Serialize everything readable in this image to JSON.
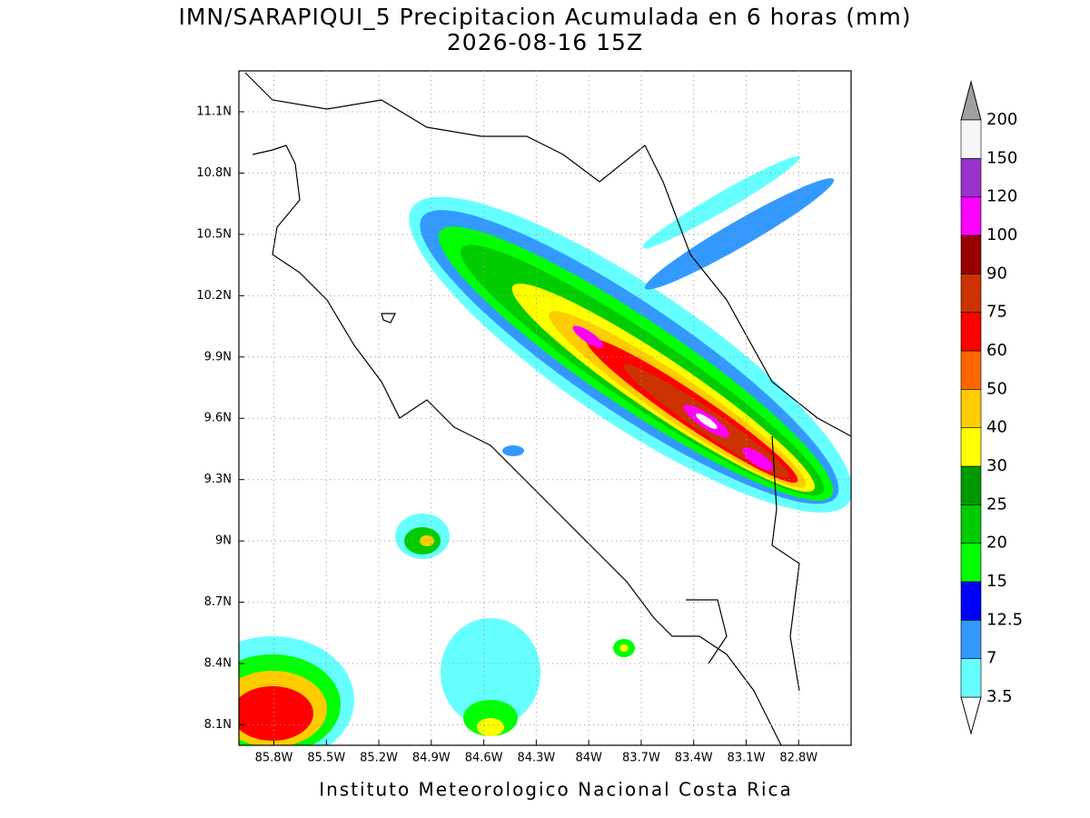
{
  "map": {
    "title": "IMN/SARAPIQUI_5 Precipitacion Acumulada en 6 horas (mm)",
    "subtitle": "2026-08-16 15Z",
    "footer": "Instituto Meteorologico Nacional Costa Rica",
    "xlim": [
      -86.0,
      -82.5
    ],
    "ylim": [
      8.0,
      11.3
    ],
    "xticks": [
      {
        "value": -85.8,
        "label": "85.8W"
      },
      {
        "value": -85.5,
        "label": "85.5W"
      },
      {
        "value": -85.2,
        "label": "85.2W"
      },
      {
        "value": -84.9,
        "label": "84.9W"
      },
      {
        "value": -84.6,
        "label": "84.6W"
      },
      {
        "value": -84.3,
        "label": "84.3W"
      },
      {
        "value": -84.0,
        "label": "84W"
      },
      {
        "value": -83.7,
        "label": "83.7W"
      },
      {
        "value": -83.4,
        "label": "83.4W"
      },
      {
        "value": -83.1,
        "label": "83.1W"
      },
      {
        "value": -82.8,
        "label": "82.8W"
      }
    ],
    "yticks": [
      {
        "value": 8.1,
        "label": "8.1N"
      },
      {
        "value": 8.4,
        "label": "8.4N"
      },
      {
        "value": 8.7,
        "label": "8.7N"
      },
      {
        "value": 9.0,
        "label": "9N"
      },
      {
        "value": 9.3,
        "label": "9.3N"
      },
      {
        "value": 9.6,
        "label": "9.6N"
      },
      {
        "value": 9.9,
        "label": "9.9N"
      },
      {
        "value": 10.2,
        "label": "10.2N"
      },
      {
        "value": 10.5,
        "label": "10.5N"
      },
      {
        "value": 10.8,
        "label": "10.8N"
      },
      {
        "value": 11.1,
        "label": "11.1N"
      }
    ],
    "grid": true,
    "colorbar": {
      "levels": [
        3.5,
        7,
        12.5,
        15,
        20,
        25,
        30,
        40,
        50,
        60,
        75,
        90,
        100,
        120,
        150,
        200
      ],
      "colors": [
        "#66ffff",
        "#3399ff",
        "#0000ff",
        "#00ff00",
        "#00cc00",
        "#009900",
        "#ffff00",
        "#ffcc00",
        "#ff6600",
        "#ff0000",
        "#cc3300",
        "#990000",
        "#ff00ff",
        "#9933cc",
        "#f5f5f5"
      ],
      "under_color": "#ffffff",
      "over_color": "#a0a0a0"
    }
  }
}
